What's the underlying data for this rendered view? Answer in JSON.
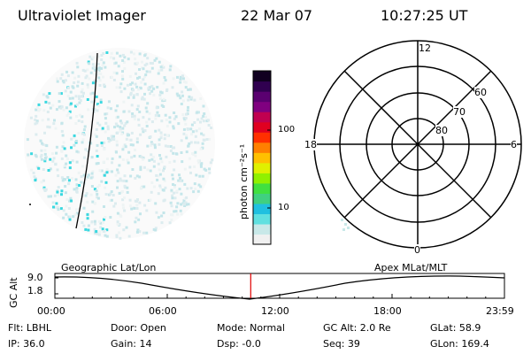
{
  "header": {
    "instrument": "Ultraviolet Imager",
    "date": "22 Mar 07",
    "time": "10:27:25 UT"
  },
  "colorbar": {
    "unit_label": "photon cm⁻²s⁻¹",
    "ticks": [
      "100",
      "10"
    ],
    "colors": [
      "#f0f0f0",
      "#c8e8e8",
      "#60e0e0",
      "#20c0e0",
      "#40d080",
      "#40e040",
      "#90f000",
      "#e0f000",
      "#ffc000",
      "#ff8000",
      "#ff3000",
      "#e00020",
      "#c00050",
      "#800080",
      "#5a0070",
      "#300050",
      "#100020"
    ]
  },
  "polar_plot": {
    "mlt_labels": {
      "top": "12",
      "bottom": "0",
      "left": "18",
      "right": "6"
    },
    "lat_labels": [
      "60",
      "70",
      "80"
    ]
  },
  "timeline": {
    "ylabel": "GC Alt",
    "y_ticks": [
      "9.0",
      "1.8"
    ],
    "left_label": "Geographic Lat/Lon",
    "right_label": "Apex  MLat/MLT",
    "x_ticks": [
      "00:00",
      "06:00",
      "12:00",
      "18:00",
      "23:59"
    ],
    "current_time_fraction": 0.4357
  },
  "status": {
    "row1": [
      {
        "key": "flt",
        "text": "Flt: LBHL"
      },
      {
        "key": "door",
        "text": "Door: Open"
      },
      {
        "key": "mode",
        "text": "Mode: Normal"
      },
      {
        "key": "gcalt",
        "text": "GC Alt: 2.0 Re"
      },
      {
        "key": "glat",
        "text": "GLat:  58.9"
      }
    ],
    "row2": [
      {
        "key": "ip",
        "text": "IP: 36.0"
      },
      {
        "key": "gain",
        "text": "Gain: 14"
      },
      {
        "key": "dsp",
        "text": "Dsp:   -0.0"
      },
      {
        "key": "seq",
        "text": "Seq: 39"
      },
      {
        "key": "glon",
        "text": "GLon: 169.4"
      }
    ]
  }
}
